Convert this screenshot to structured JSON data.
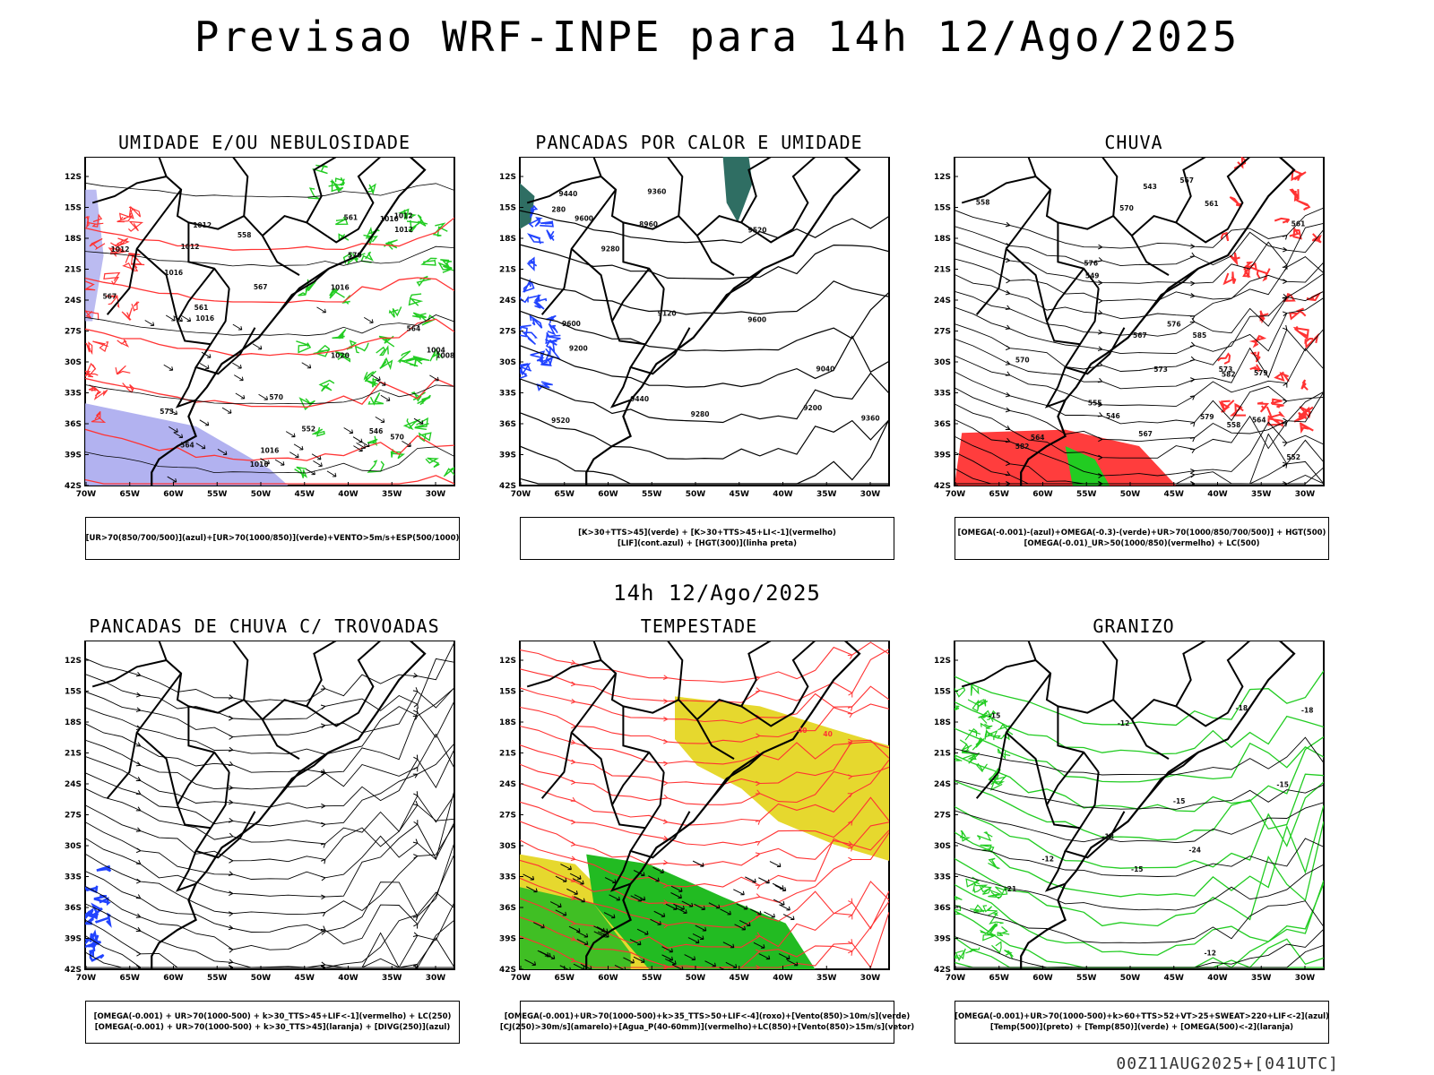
{
  "main_title": "Previsao WRF-INPE  para 14h 12/Ago/2025",
  "mid_title": "14h 12/Ago/2025",
  "footer": "00Z11AUG2025+[041UTC]",
  "axes": {
    "lat_ticks": [
      "12S",
      "15S",
      "18S",
      "21S",
      "24S",
      "27S",
      "30S",
      "33S",
      "36S",
      "39S",
      "42S"
    ],
    "lon_ticks": [
      "70W",
      "65W",
      "60W",
      "55W",
      "50W",
      "45W",
      "40W",
      "35W",
      "30W"
    ]
  },
  "colors": {
    "red": "#ff3333",
    "green": "#22cc22",
    "blue": "#2244ff",
    "lavender": "#aaaaee",
    "yellow": "#e6d82e",
    "dkgreen": "#22bb22",
    "teal": "#2f6e63",
    "black": "#000000"
  },
  "panels": [
    {
      "title": "UMIDADE E/OU NEBULOSIDADE",
      "legend": [
        "[UR>70(850/700/500)](azul)+[UR>70(1000/850)](verde)+VENTO>5m/s+ESP(500/1000)"
      ],
      "contour_labels": [
        "1012",
        "1012",
        "1016",
        "1016",
        "1016",
        "1016",
        "1020",
        "1016",
        "1012",
        "1008",
        "1004",
        "1012",
        "570",
        "573",
        "567",
        "564",
        "561",
        "558",
        "570",
        "552",
        "546",
        "564",
        "567",
        "570",
        "561",
        "1016",
        "1012"
      ]
    },
    {
      "title": "PANCADAS POR CALOR E UMIDADE",
      "legend": [
        "[K>30+TTS>45](verde) + [K>30+TTS>45+LI<-1](vermelho)",
        "[LIF](cont.azul) + [HGT(300)](linha preta)"
      ],
      "contour_labels": [
        "9600",
        "9600",
        "9600",
        "9520",
        "9520",
        "9440",
        "9440",
        "9360",
        "9360",
        "9280",
        "9280",
        "9200",
        "9200",
        "9120",
        "9040",
        "8960",
        "280"
      ]
    },
    {
      "title": "CHUVA",
      "legend": [
        "[OMEGA(-0.001)-(azul)+OMEGA(-0.3)-(verde)+UR>70(1000/850/700/500)] + HGT(500)",
        "[OMEGA(-0.01)_UR>50(1000/850)(vermelho) + LC(500)"
      ],
      "contour_labels": [
        "582",
        "579",
        "576",
        "573",
        "570",
        "567",
        "564",
        "561",
        "558",
        "555",
        "552",
        "549",
        "546",
        "543",
        "579",
        "576",
        "573",
        "570",
        "567",
        "561",
        "558",
        "564",
        "567",
        "585",
        "582"
      ]
    },
    {
      "title": "PANCADAS DE CHUVA C/ TROVOADAS",
      "legend": [
        "[OMEGA(-0.001) + UR>70(1000-500) + k>30_TTS>45+LIF<-1](vermelho) + LC(250)",
        "[OMEGA(-0.001) + UR>70(1000-500) + k>30_TTS>45](laranja) + [DIVG(250)](azul)"
      ],
      "contour_labels": []
    },
    {
      "title": "TEMPESTADE",
      "legend": [
        "[OMEGA(-0.001)+UR>70(1000-500)+k>35_TTS>50+LIF<-4](roxo)+[Vento(850)>10m/s](verde)",
        "[CJ(250)>30m/s](amarelo)+[Agua_P(40-60mm)](vermelho)+LC(850)+[Vento(850)>15m/s](vetor)"
      ],
      "contour_labels": [
        "40",
        "40"
      ]
    },
    {
      "title": "GRANIZO",
      "legend": [
        "[OMEGA(-0.001)+UR>70(1000-500)+k>60+TTS>52+VT>25+SWEAT>220+LIF<-2](azul)",
        "[Temp(500)](preto) + [Temp(850)](verde) + [OMEGA(500)<-2](laranja)"
      ],
      "contour_labels": [
        "-12",
        "-12",
        "-15",
        "-15",
        "-15",
        "-18",
        "-18",
        "-21",
        "-24",
        "-12",
        "-15",
        "-18"
      ]
    }
  ]
}
